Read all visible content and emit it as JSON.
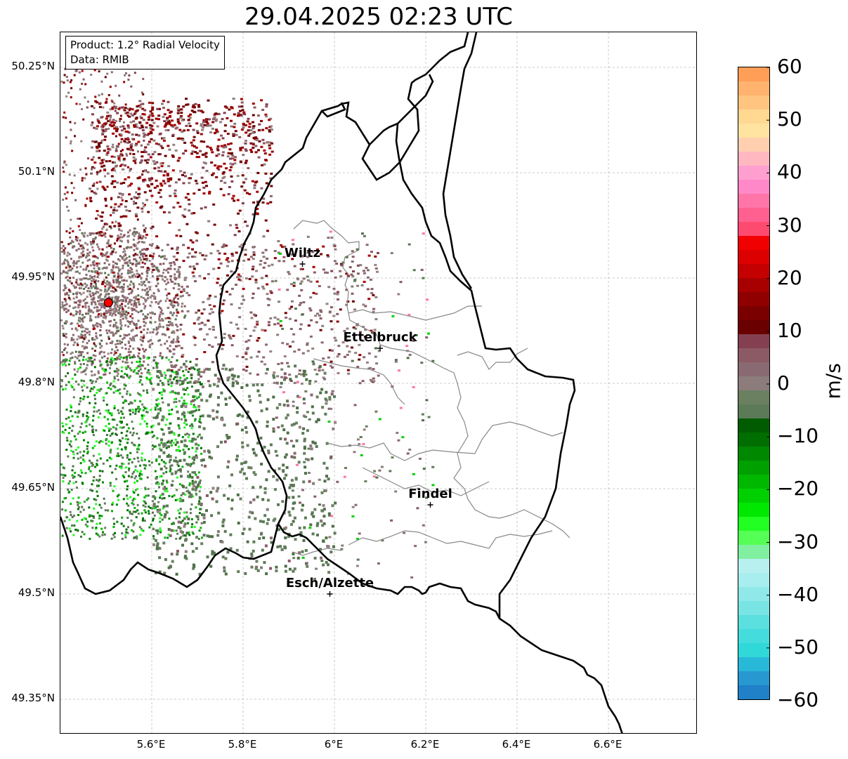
{
  "title": "29.04.2025 02:23 UTC",
  "info": {
    "product": "Product: 1.2° Radial Velocity",
    "source": "Data: RMIB"
  },
  "lat_labels": [
    "50.25°N",
    "50.1°N",
    "49.95°N",
    "49.8°N",
    "49.65°N",
    "49.5°N",
    "49.35°N"
  ],
  "lon_labels": [
    "5.6°E",
    "5.8°E",
    "6°E",
    "6.2°E",
    "6.4°E",
    "6.6°E"
  ],
  "cities": [
    {
      "name": "Wiltz",
      "lat": 49.97,
      "lon": 5.93
    },
    {
      "name": "Ettelbruck",
      "lat": 49.85,
      "lon": 6.1
    },
    {
      "name": "Findel",
      "lat": 49.627,
      "lon": 6.21
    },
    {
      "name": "Esch/Alzette",
      "lat": 49.5,
      "lon": 5.99
    }
  ],
  "radar_site": {
    "lat": 49.915,
    "lon": 5.505
  },
  "colorbar": {
    "unit": "m/s",
    "tick_labels": [
      "60",
      "50",
      "40",
      "30",
      "20",
      "10",
      "0",
      "−10",
      "−20",
      "−30",
      "−40",
      "−50",
      "−60"
    ],
    "min": -60,
    "max": 60,
    "colors_top_to_bottom": [
      "#ff9e57",
      "#ffb36e",
      "#ffc580",
      "#ffd892",
      "#ffe3a0",
      "#ffcfb0",
      "#ffb8c0",
      "#ff9fd0",
      "#ff88c8",
      "#ff75a8",
      "#ff6090",
      "#ff4a70",
      "#f00000",
      "#dd0000",
      "#c40000",
      "#a80000",
      "#900000",
      "#7a0000",
      "#6a0000",
      "#844050",
      "#8c5a64",
      "#8a6a72",
      "#8c7c7c",
      "#6a8060",
      "#5c7a58",
      "#005c00",
      "#006e00",
      "#008800",
      "#00a000",
      "#00b800",
      "#00d000",
      "#00e800",
      "#22ff22",
      "#55ff55",
      "#80f0a0",
      "#b8f0f0",
      "#a8eeee",
      "#90e8e8",
      "#78e4e4",
      "#5cdfdf",
      "#44dcdc",
      "#30d8d8",
      "#28b8d8",
      "#2898d0",
      "#2080c8"
    ]
  }
}
